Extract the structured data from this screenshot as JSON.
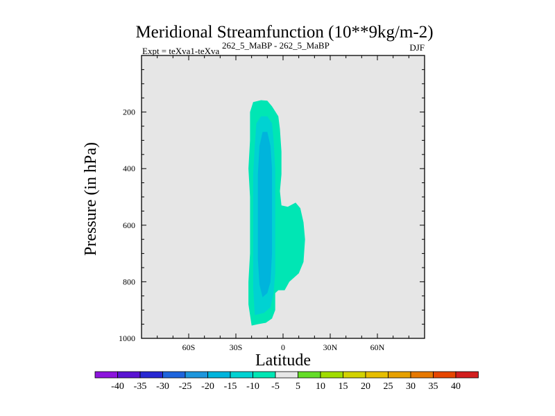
{
  "chart_data": {
    "type": "contour",
    "title": "Meridional Streamfunction (10**9kg/m-2)",
    "subtitle_left": "Expt = teXva1-teXva",
    "subtitle_exp": "262_5_MaBP - 262_5_MaBP",
    "subtitle_right": "DJF",
    "xlabel": "Latitude",
    "ylabel": "Pressure (in hPa)",
    "xlim": [
      -90,
      90
    ],
    "ylim": [
      1000,
      0
    ],
    "x_ticks": [
      {
        "value": -60,
        "label": "60S"
      },
      {
        "value": -30,
        "label": "30S"
      },
      {
        "value": 0,
        "label": "0"
      },
      {
        "value": 30,
        "label": "30N"
      },
      {
        "value": 60,
        "label": "60N"
      }
    ],
    "y_ticks": [
      {
        "value": 200,
        "label": "200"
      },
      {
        "value": 400,
        "label": "400"
      },
      {
        "value": 600,
        "label": "600"
      },
      {
        "value": 800,
        "label": "800"
      },
      {
        "value": 1000,
        "label": "1000"
      }
    ],
    "regions": [
      {
        "name": "contour-outer-minus5",
        "value": -5,
        "color": "#00e6b4",
        "points": [
          [
            -20,
            955
          ],
          [
            -16,
            950
          ],
          [
            -11,
            945
          ],
          [
            -7,
            930
          ],
          [
            -5,
            900
          ],
          [
            -5,
            840
          ],
          [
            -3,
            830
          ],
          [
            1,
            830
          ],
          [
            4,
            800
          ],
          [
            10,
            770
          ],
          [
            13,
            730
          ],
          [
            14,
            650
          ],
          [
            13,
            590
          ],
          [
            11,
            540
          ],
          [
            8,
            520
          ],
          [
            3,
            535
          ],
          [
            -1,
            530
          ],
          [
            -2,
            480
          ],
          [
            -1,
            420
          ],
          [
            -1,
            340
          ],
          [
            -2,
            260
          ],
          [
            -3,
            215
          ],
          [
            -7,
            180
          ],
          [
            -10,
            160
          ],
          [
            -14,
            158
          ],
          [
            -19,
            165
          ],
          [
            -21,
            200
          ],
          [
            -21,
            300
          ],
          [
            -22,
            400
          ],
          [
            -21,
            500
          ],
          [
            -21,
            600
          ],
          [
            -21,
            700
          ],
          [
            -22,
            800
          ],
          [
            -22,
            880
          ]
        ]
      },
      {
        "name": "contour-minus10",
        "value": -10,
        "color": "#00d2d2",
        "points": [
          [
            -18,
            918
          ],
          [
            -12,
            910
          ],
          [
            -8,
            890
          ],
          [
            -6,
            840
          ],
          [
            -5,
            770
          ],
          [
            -5,
            700
          ],
          [
            -5,
            600
          ],
          [
            -5,
            500
          ],
          [
            -5,
            400
          ],
          [
            -6,
            300
          ],
          [
            -7,
            240
          ],
          [
            -10,
            215
          ],
          [
            -14,
            215
          ],
          [
            -17,
            240
          ],
          [
            -18,
            320
          ],
          [
            -19,
            420
          ],
          [
            -19,
            520
          ],
          [
            -19,
            620
          ],
          [
            -19,
            720
          ],
          [
            -19,
            820
          ]
        ]
      },
      {
        "name": "contour-minus15",
        "value": -15,
        "color": "#00b4dc",
        "points": [
          [
            -13,
            855
          ],
          [
            -10,
            840
          ],
          [
            -8,
            800
          ],
          [
            -7,
            700
          ],
          [
            -7,
            600
          ],
          [
            -7,
            500
          ],
          [
            -7,
            400
          ],
          [
            -8,
            320
          ],
          [
            -10,
            270
          ],
          [
            -13,
            270
          ],
          [
            -15,
            320
          ],
          [
            -16,
            420
          ],
          [
            -16,
            520
          ],
          [
            -16,
            620
          ],
          [
            -16,
            720
          ],
          [
            -15,
            810
          ]
        ]
      }
    ],
    "colorbar": {
      "labels": [
        "-40",
        "-35",
        "-30",
        "-25",
        "-20",
        "-15",
        "-10",
        "-5",
        "5",
        "10",
        "15",
        "20",
        "25",
        "30",
        "35",
        "40"
      ],
      "colors": [
        "#8c14dc",
        "#5a14d2",
        "#2828d2",
        "#1e64dc",
        "#1e96dc",
        "#00b4dc",
        "#00d2d2",
        "#00e6b4",
        "#e6e6e6",
        "#64dc28",
        "#a0dc00",
        "#d2d200",
        "#e6be00",
        "#e6a000",
        "#e67800",
        "#e64600",
        "#d21e1e"
      ]
    },
    "background_color": "#e6e6e6"
  }
}
